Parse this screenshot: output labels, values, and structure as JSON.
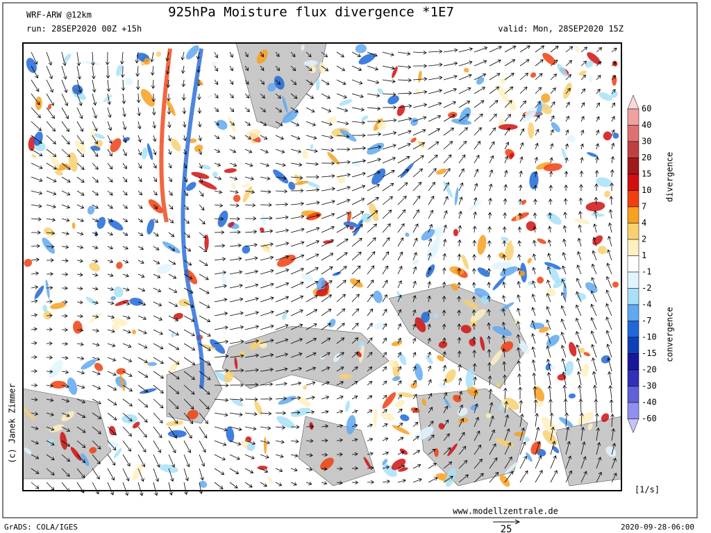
{
  "header": {
    "model": "WRF-ARW @12km",
    "title": "925hPa Moisture flux divergence *1E7",
    "run": "run: 28SEP2020 00Z +15h",
    "valid": "valid: Mon, 28SEP2020 15Z"
  },
  "colorbar": {
    "levels": [
      60,
      40,
      30,
      20,
      15,
      10,
      7,
      4,
      2,
      1,
      -1,
      -2,
      -4,
      -7,
      -10,
      -15,
      -20,
      -30,
      -40,
      -60
    ],
    "colors": [
      "#f8d8d8",
      "#f0a0a0",
      "#e07070",
      "#c04040",
      "#a01818",
      "#d01010",
      "#f04010",
      "#f8a020",
      "#f8d070",
      "#fff0c0",
      "#ffffff",
      "#e0f4ff",
      "#a8e0f8",
      "#60a8f0",
      "#2068d8",
      "#1040b8",
      "#18189a",
      "#3030b8",
      "#6060d8",
      "#9090f0",
      "#c8c0f8"
    ],
    "upper_label": "divergence",
    "lower_label": "convergence",
    "unit": "[1/s]"
  },
  "footer": {
    "website": "www.modellzentrale.de",
    "credit": "(c) Janek Zimmer",
    "software": "GrADS: COLA/IGES",
    "timestamp": "2020-09-28-06:00",
    "reference_vector": "25"
  }
}
